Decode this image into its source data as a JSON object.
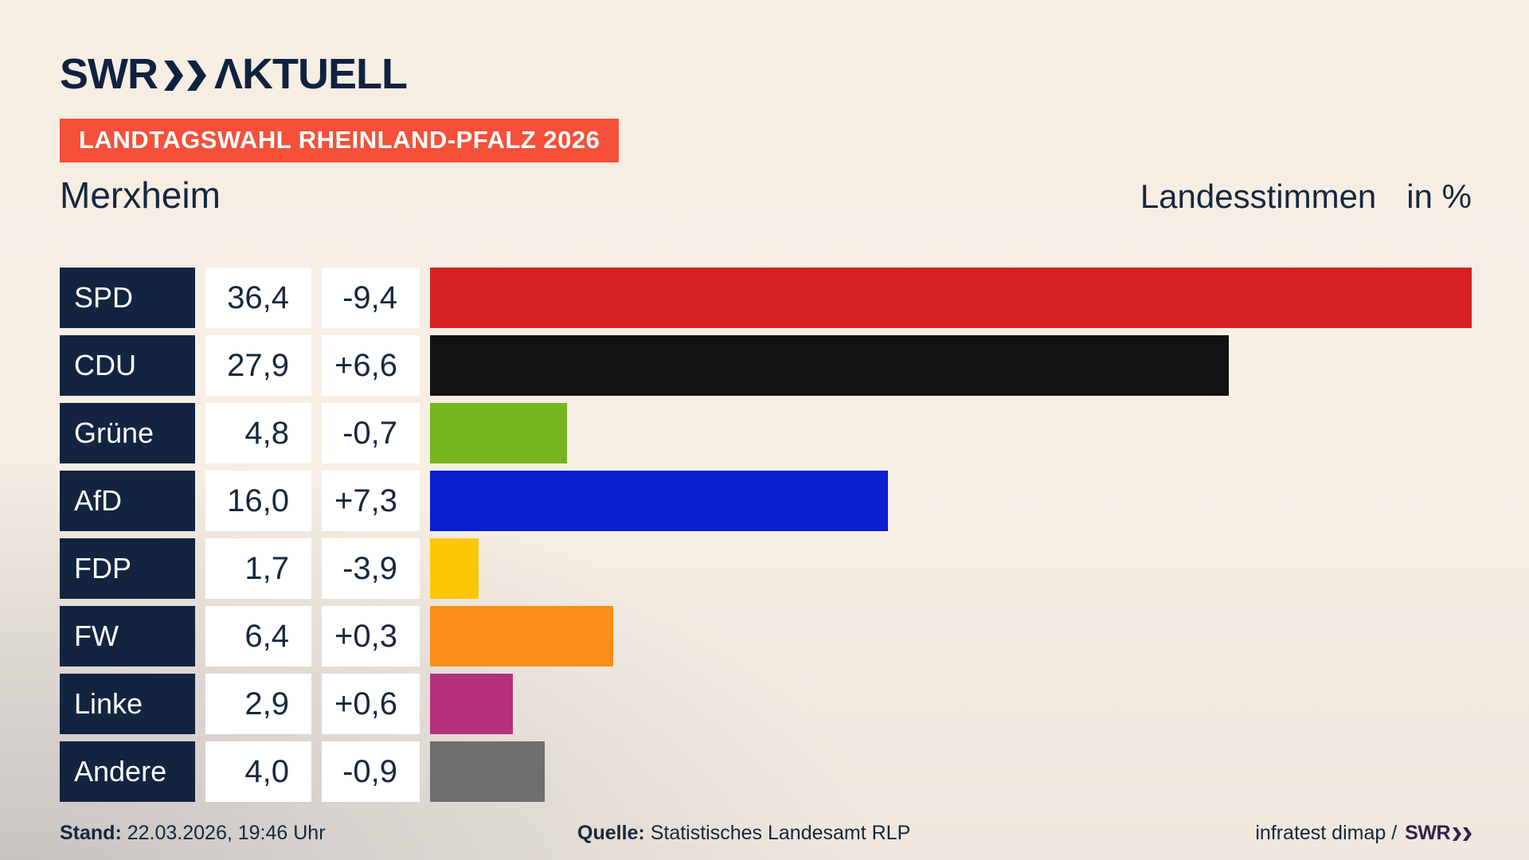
{
  "brand": {
    "logo_swr": "SWR",
    "logo_suffix": "ΛKTUELL"
  },
  "banner": {
    "text": "LANDTAGSWAHL RHEINLAND-PFALZ 2026",
    "bg_color": "#f4503a",
    "text_color": "#ffffff"
  },
  "header": {
    "region": "Merxheim",
    "measure": "Landesstimmen",
    "unit": "in %"
  },
  "chart_data": {
    "type": "bar",
    "orientation": "horizontal",
    "title": "Landtagswahl Rheinland-Pfalz 2026 – Merxheim – Landesstimmen in %",
    "unit": "%",
    "xlim": [
      0,
      36.4
    ],
    "categories": [
      "SPD",
      "CDU",
      "Grüne",
      "AfD",
      "FDP",
      "FW",
      "Linke",
      "Andere"
    ],
    "values": [
      36.4,
      27.9,
      4.8,
      16.0,
      1.7,
      6.4,
      2.9,
      4.0
    ],
    "value_labels": [
      "36,4",
      "27,9",
      "4,8",
      "16,0",
      "1,7",
      "6,4",
      "2,9",
      "4,0"
    ],
    "change_labels": [
      "-9,4",
      "+6,6",
      "-0,7",
      "+7,3",
      "-3,9",
      "+0,3",
      "+0,6",
      "-0,9"
    ],
    "bar_colors": [
      "#d42221",
      "#121212",
      "#77b51f",
      "#0b1fd1",
      "#fdc609",
      "#fb8e16",
      "#b5317a",
      "#6d6f71"
    ],
    "label_box_color": "#132440",
    "grid": false,
    "legend": false
  },
  "footer": {
    "stand_label": "Stand:",
    "stand_value": "22.03.2026, 19:46 Uhr",
    "quelle_label": "Quelle:",
    "quelle_value": "Statistisches Landesamt RLP",
    "credit_text": "infratest dimap /",
    "credit_brand": "SWR"
  }
}
